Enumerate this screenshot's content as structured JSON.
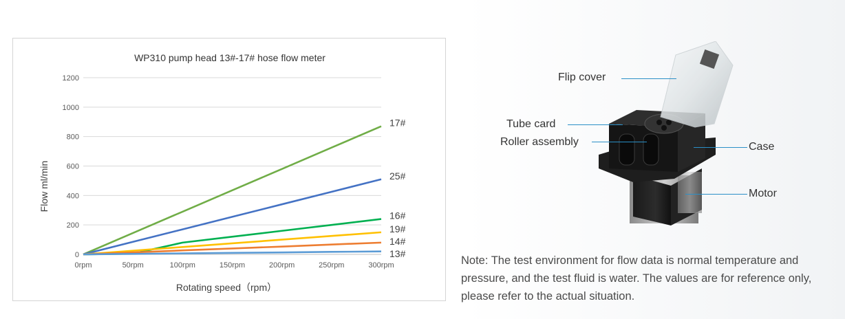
{
  "chart_data": {
    "type": "line",
    "title": "WP310 pump head 13#-17# hose flow meter",
    "xlabel": "Rotating speed（rpm）",
    "ylabel": "Flow  ml/min",
    "categories": [
      "0rpm",
      "50rpm",
      "100rpm",
      "150rpm",
      "200rpm",
      "250rpm",
      "300rpm"
    ],
    "x": [
      0,
      50,
      100,
      150,
      200,
      250,
      300
    ],
    "ylim": [
      0,
      1200
    ],
    "yticks": [
      0,
      200,
      400,
      600,
      800,
      1000,
      1200
    ],
    "grid": true,
    "series": [
      {
        "name": "17#",
        "color": "#70ad47",
        "values": [
          0,
          145,
          290,
          435,
          580,
          725,
          870
        ]
      },
      {
        "name": "25#",
        "color": "#4472c4",
        "values": [
          0,
          85,
          170,
          255,
          340,
          425,
          510
        ]
      },
      {
        "name": "16#",
        "color": "#00b050",
        "values": [
          0,
          5,
          80,
          120,
          160,
          200,
          240
        ]
      },
      {
        "name": "19#",
        "color": "#ffc000",
        "values": [
          0,
          25,
          50,
          75,
          100,
          125,
          150
        ]
      },
      {
        "name": "14#",
        "color": "#ed7d31",
        "values": [
          0,
          13,
          27,
          40,
          53,
          67,
          80
        ]
      },
      {
        "name": "13#",
        "color": "#5b9bd5",
        "values": [
          0,
          3,
          7,
          10,
          13,
          17,
          20
        ]
      }
    ]
  },
  "product": {
    "labels": {
      "flip_cover": "Flip cover",
      "tube_card": "Tube card",
      "roller_assembly": "Roller assembly",
      "case": "Case",
      "motor": "Motor"
    },
    "callout_color": "#2a8fc7"
  },
  "note": "Note: The test environment for flow data is normal temperature and pressure, and the test fluid is water. The values are for reference only, please refer to the actual situation."
}
